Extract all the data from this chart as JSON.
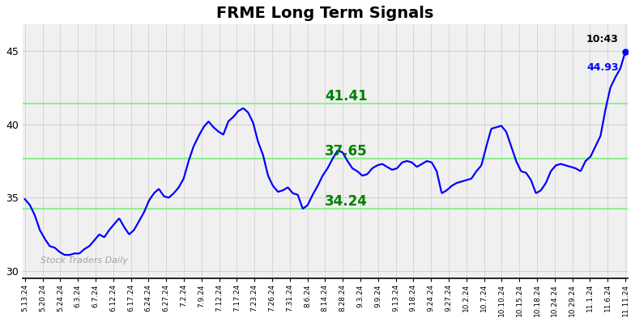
{
  "title": "FRME Long Term Signals",
  "title_fontsize": 14,
  "title_fontweight": "bold",
  "watermark": "Stock Traders Daily",
  "hlines": [
    41.41,
    37.65,
    34.24
  ],
  "hline_color": "#90EE90",
  "hline_labels_color": "#008000",
  "hline_label_fontsize": 12,
  "hline_label_fontweight": "bold",
  "last_price": 44.93,
  "last_time": "10:43",
  "last_price_color": "blue",
  "last_time_color": "black",
  "line_color": "blue",
  "line_width": 1.6,
  "ylim": [
    29.5,
    46.8
  ],
  "yticks": [
    30,
    35,
    40,
    45
  ],
  "background_color": "#f0f0f0",
  "grid_color": "#cccccc",
  "x_labels": [
    "5.13.24",
    "5.20.24",
    "5.24.24",
    "6.3.24",
    "6.7.24",
    "6.12.24",
    "6.17.24",
    "6.24.24",
    "6.27.24",
    "7.2.24",
    "7.9.24",
    "7.12.24",
    "7.17.24",
    "7.23.24",
    "7.26.24",
    "7.31.24",
    "8.6.24",
    "8.14.24",
    "8.28.24",
    "9.3.24",
    "9.9.24",
    "9.13.24",
    "9.18.24",
    "9.24.24",
    "9.27.24",
    "10.2.24",
    "10.7.24",
    "10.10.24",
    "10.15.24",
    "10.18.24",
    "10.24.24",
    "10.29.24",
    "11.1.24",
    "11.6.24",
    "11.11.24"
  ],
  "y_values": [
    34.9,
    34.5,
    33.8,
    32.8,
    32.2,
    31.7,
    31.6,
    31.3,
    31.1,
    31.1,
    31.2,
    31.2,
    31.5,
    31.7,
    32.1,
    32.5,
    32.3,
    32.8,
    33.2,
    33.6,
    33.0,
    32.5,
    32.8,
    33.4,
    34.0,
    34.8,
    35.3,
    35.6,
    35.1,
    35.0,
    35.3,
    35.7,
    36.3,
    37.5,
    38.5,
    39.2,
    39.8,
    40.2,
    39.8,
    39.5,
    39.3,
    40.2,
    40.5,
    40.9,
    41.1,
    40.8,
    40.1,
    38.8,
    37.9,
    36.5,
    35.8,
    35.4,
    35.5,
    35.7,
    35.3,
    35.2,
    34.24,
    34.5,
    35.2,
    35.8,
    36.5,
    37.0,
    37.65,
    38.2,
    38.1,
    37.5,
    37.0,
    36.8,
    36.5,
    36.6,
    37.0,
    37.2,
    37.3,
    37.1,
    36.9,
    37.0,
    37.4,
    37.5,
    37.4,
    37.1,
    37.3,
    37.5,
    37.4,
    36.8,
    35.3,
    35.5,
    35.8,
    36.0,
    36.1,
    36.2,
    36.3,
    36.8,
    37.2,
    38.5,
    39.7,
    39.8,
    39.9,
    39.5,
    38.5,
    37.5,
    36.8,
    36.7,
    36.2,
    35.3,
    35.5,
    36.0,
    36.8,
    37.2,
    37.3,
    37.2,
    37.1,
    37.0,
    36.8,
    37.5,
    37.8,
    38.5,
    39.2,
    41.0,
    42.5,
    43.2,
    43.8,
    44.93
  ]
}
